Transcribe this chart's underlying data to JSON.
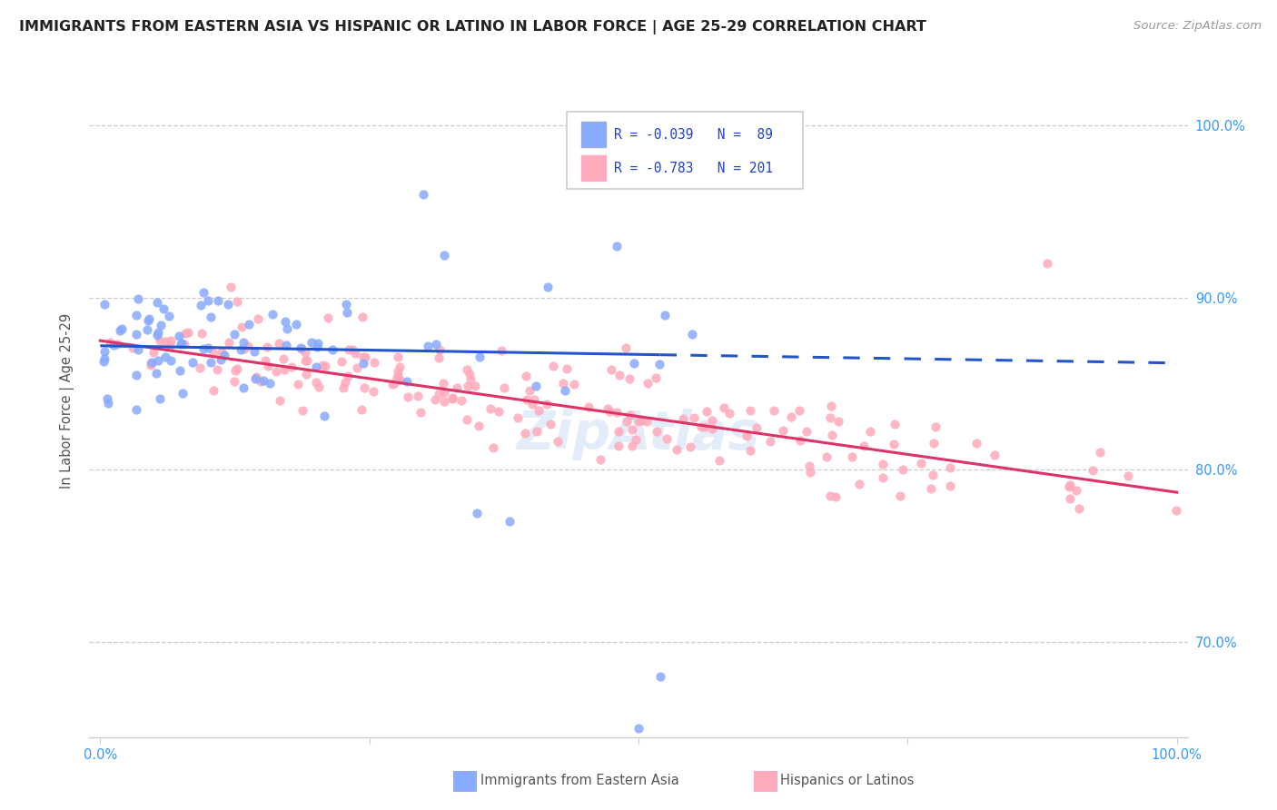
{
  "title": "IMMIGRANTS FROM EASTERN ASIA VS HISPANIC OR LATINO IN LABOR FORCE | AGE 25-29 CORRELATION CHART",
  "source": "Source: ZipAtlas.com",
  "ylabel": "In Labor Force | Age 25-29",
  "ytick_labels": [
    "70.0%",
    "80.0%",
    "90.0%",
    "100.0%"
  ],
  "ytick_values": [
    0.7,
    0.8,
    0.9,
    1.0
  ],
  "xlim": [
    -0.01,
    1.01
  ],
  "ylim": [
    0.645,
    1.035
  ],
  "blue_R": -0.039,
  "blue_N": 89,
  "pink_R": -0.783,
  "pink_N": 201,
  "legend_label_blue": "Immigrants from Eastern Asia",
  "legend_label_pink": "Hispanics or Latinos",
  "blue_color": "#88aaff",
  "pink_color": "#ffaabb",
  "blue_line_color": "#2255cc",
  "pink_line_color": "#dd3366",
  "watermark": "ZipAtlas",
  "blue_line_x_solid_end": 0.52,
  "blue_line_x_start": 0.0,
  "blue_line_x_end": 1.0,
  "blue_line_y_start": 0.872,
  "blue_line_y_end": 0.862,
  "pink_line_y_start": 0.875,
  "pink_line_y_end": 0.787
}
